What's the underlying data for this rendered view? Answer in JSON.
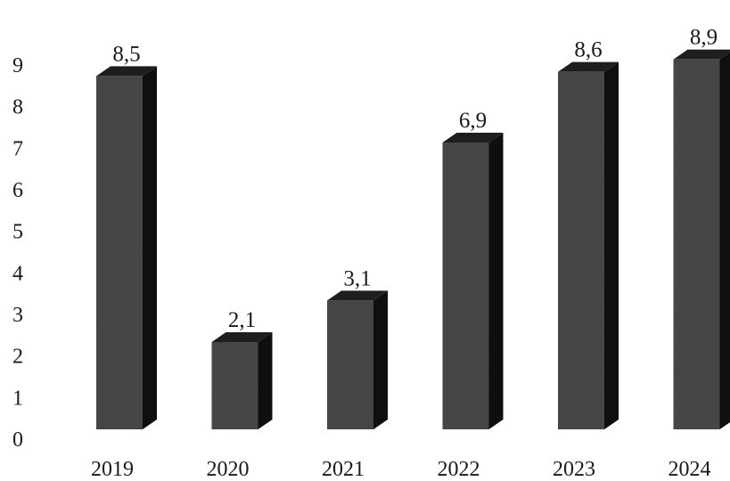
{
  "chart_data": {
    "type": "bar",
    "style": "3d",
    "title": "",
    "xlabel": "",
    "ylabel": "",
    "categories": [
      "2019",
      "2020",
      "2021",
      "2022",
      "2023",
      "2024"
    ],
    "values": [
      8.5,
      2.1,
      3.1,
      6.9,
      8.6,
      8.9
    ],
    "data_labels": [
      "8,5",
      "2,1",
      "3,1",
      "6,9",
      "8,6",
      "8,9"
    ],
    "y_ticks": [
      "0",
      "1",
      "2",
      "3",
      "4",
      "5",
      "6",
      "7",
      "8",
      "9"
    ],
    "ylim": [
      0,
      9
    ],
    "grid": false,
    "legend": "none",
    "colors": {
      "bar_front": "#4a4a4a",
      "bar_side": "#0f0f0f",
      "bar_top": "#1e1e1e"
    }
  }
}
